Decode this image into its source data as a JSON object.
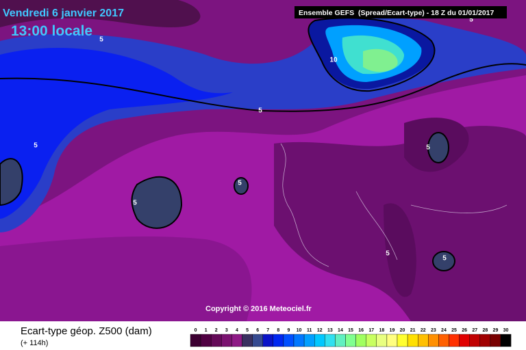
{
  "header": {
    "date": "Vendredi 6 janvier 2017",
    "time": "13:00 locale",
    "model": "Ensemble GEFS  (Spread/Ecart-type) - 18 Z du 01/01/2017"
  },
  "copyright": "Copyright © 2016 Meteociel.fr",
  "contour_labels": [
    "5",
    "10",
    "5",
    "5",
    "5",
    "5",
    "5",
    "5",
    "5",
    "5"
  ],
  "legend": {
    "title": "Ecart-type géop. Z500 (dam)",
    "lead": "(+ 114h)",
    "labels": [
      0,
      1,
      2,
      3,
      4,
      5,
      6,
      7,
      8,
      9,
      10,
      11,
      12,
      13,
      14,
      15,
      16,
      17,
      18,
      19,
      20,
      21,
      22,
      23,
      24,
      25,
      26,
      27,
      28,
      29,
      30
    ],
    "colors": [
      "#3c0032",
      "#500042",
      "#640a58",
      "#7a1270",
      "#8e1a86",
      "#3a3060",
      "#364a90",
      "#0a14c8",
      "#0028f0",
      "#0050ff",
      "#0078ff",
      "#00a0ff",
      "#00c8ff",
      "#30e0f0",
      "#60f0c0",
      "#80ff90",
      "#a0ff60",
      "#c8ff60",
      "#e8ff80",
      "#ffff80",
      "#ffff30",
      "#ffe000",
      "#ffc000",
      "#ff9000",
      "#ff6000",
      "#ff3000",
      "#e00000",
      "#c00000",
      "#a00000",
      "#780000",
      "#000000"
    ]
  }
}
